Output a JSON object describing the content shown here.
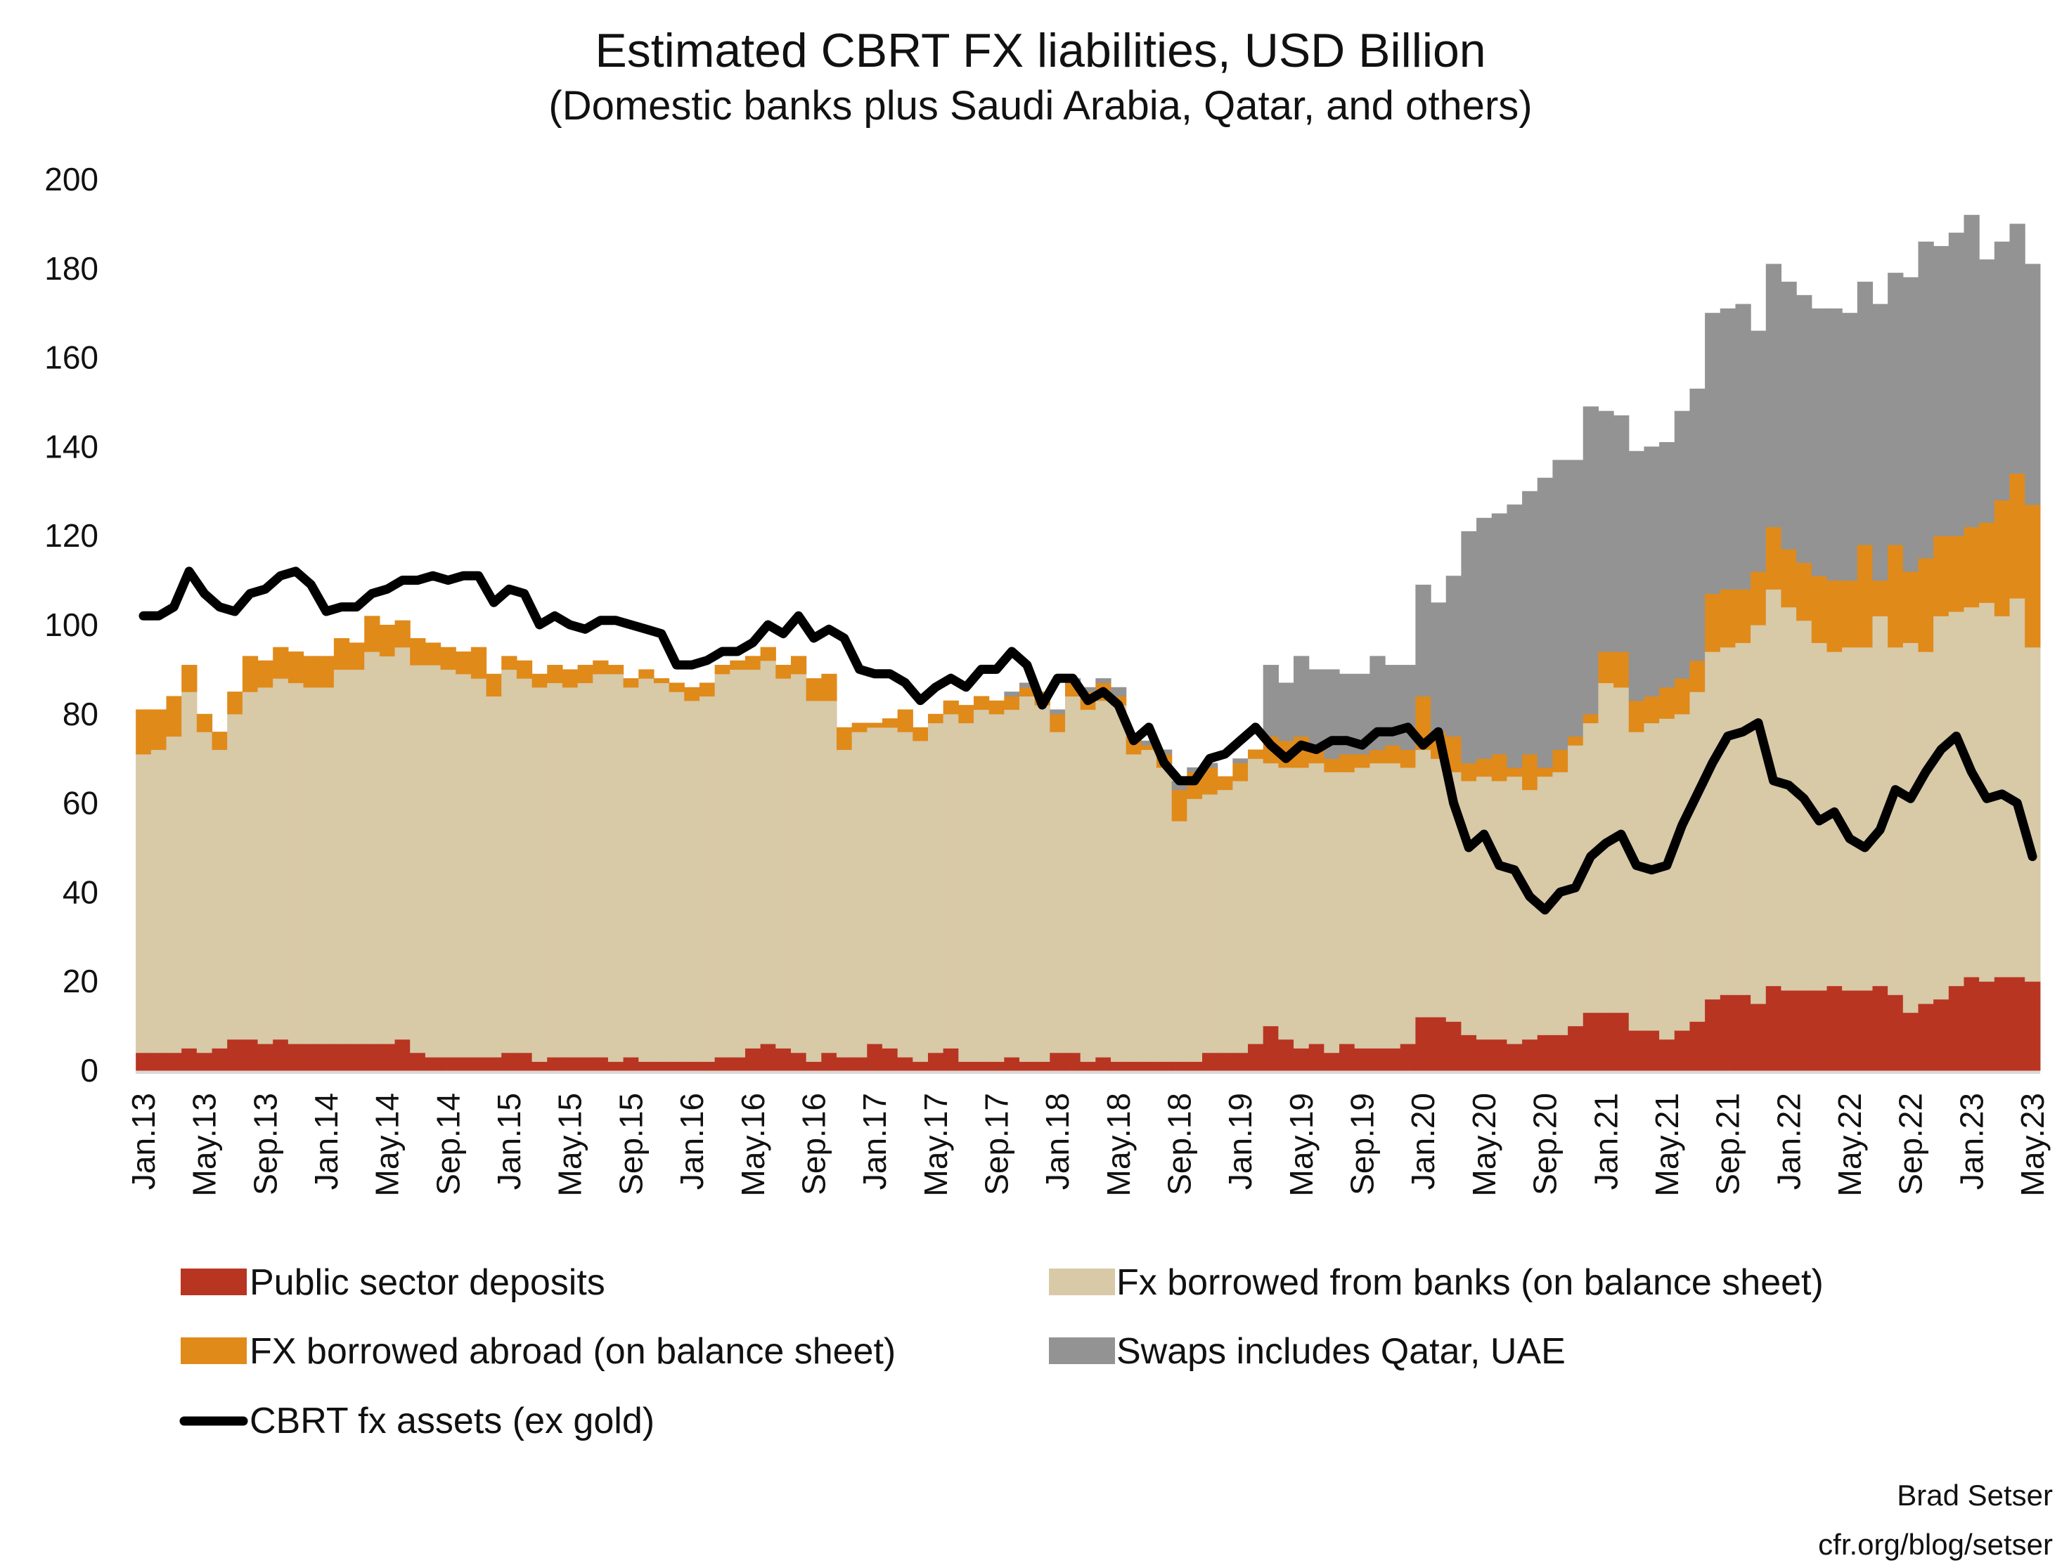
{
  "chart_data": {
    "type": "bar",
    "stacked": true,
    "title": "Estimated CBRT FX liabilities, USD Billion",
    "subtitle": "(Domestic banks plus Saudi Arabia, Qatar, and others)",
    "xlabel": "",
    "ylabel": "",
    "ylim": [
      0,
      200
    ],
    "y_ticks": [
      "0",
      "20",
      "40",
      "60",
      "80",
      "100",
      "120",
      "140",
      "160",
      "180",
      "200"
    ],
    "x_tick_labels": [
      "Jan.13",
      "May.13",
      "Sep.13",
      "Jan.14",
      "May.14",
      "Sep.14",
      "Jan.15",
      "May.15",
      "Sep.15",
      "Jan.16",
      "May.16",
      "Sep.16",
      "Jan.17",
      "May.17",
      "Sep.17",
      "Jan.18",
      "May.18",
      "Sep.18",
      "Jan.19",
      "May.19",
      "Sep.19",
      "Jan.20",
      "May.20",
      "Sep.20",
      "Jan.21",
      "May.21",
      "Sep.21",
      "Jan.22",
      "May.22",
      "Sep.22",
      "Jan.23",
      "May.23"
    ],
    "frequency": "monthly",
    "grid": false,
    "legend_position": "bottom",
    "series": [
      {
        "name": "Public sector deposits",
        "kind": "bar",
        "color": "#b83522",
        "values": [
          4,
          4,
          4,
          5,
          4,
          5,
          7,
          7,
          6,
          7,
          6,
          6,
          6,
          6,
          6,
          6,
          6,
          7,
          4,
          3,
          3,
          3,
          3,
          3,
          4,
          4,
          2,
          3,
          3,
          3,
          3,
          2,
          3,
          2,
          2,
          2,
          2,
          2,
          3,
          3,
          5,
          6,
          5,
          4,
          2,
          4,
          3,
          3,
          6,
          5,
          3,
          2,
          4,
          5,
          2,
          2,
          2,
          3,
          2,
          2,
          4,
          4,
          2,
          3,
          2,
          2,
          2,
          2,
          2,
          2,
          4,
          4,
          4,
          6,
          10,
          7,
          5,
          6,
          4,
          6,
          5,
          5,
          5,
          6,
          12,
          12,
          11,
          8,
          7,
          7,
          6,
          7,
          8,
          8,
          10,
          13,
          13,
          13,
          9,
          9,
          7,
          9,
          11,
          16,
          17,
          17,
          15,
          19,
          18,
          18,
          18,
          19,
          18,
          18,
          19,
          17,
          13,
          15,
          16,
          19,
          21,
          20,
          21,
          21,
          20
        ]
      },
      {
        "name": "Fx borrowed from banks (on balance sheet)",
        "kind": "bar",
        "color": "#d8c9a7",
        "values": [
          67,
          68,
          71,
          80,
          72,
          67,
          73,
          78,
          80,
          81,
          81,
          80,
          80,
          84,
          84,
          88,
          87,
          88,
          87,
          88,
          87,
          86,
          85,
          81,
          86,
          84,
          84,
          84,
          83,
          84,
          86,
          87,
          83,
          86,
          85,
          83,
          81,
          82,
          86,
          87,
          85,
          86,
          83,
          85,
          81,
          79,
          69,
          73,
          71,
          72,
          73,
          72,
          74,
          75,
          76,
          79,
          78,
          78,
          82,
          80,
          72,
          80,
          79,
          80,
          80,
          69,
          70,
          66,
          54,
          59,
          58,
          59,
          61,
          64,
          59,
          61,
          63,
          63,
          63,
          61,
          63,
          64,
          64,
          62,
          60,
          58,
          56,
          57,
          59,
          58,
          60,
          56,
          58,
          59,
          63,
          65,
          74,
          73,
          67,
          69,
          72,
          71,
          74,
          78,
          78,
          79,
          85,
          89,
          86,
          83,
          78,
          75,
          77,
          77,
          83,
          78,
          83,
          79,
          86,
          84,
          83,
          85,
          81,
          85,
          75
        ]
      },
      {
        "name": "FX borrowed abroad (on balance sheet)",
        "kind": "bar",
        "color": "#e08a1a",
        "values": [
          10,
          9,
          9,
          6,
          4,
          4,
          5,
          8,
          6,
          7,
          7,
          7,
          7,
          7,
          6,
          8,
          7,
          6,
          6,
          5,
          5,
          5,
          7,
          5,
          3,
          4,
          3,
          4,
          4,
          4,
          3,
          2,
          2,
          2,
          1,
          2,
          3,
          3,
          2,
          2,
          3,
          3,
          3,
          4,
          5,
          6,
          5,
          2,
          1,
          2,
          5,
          3,
          2,
          3,
          4,
          3,
          3,
          3,
          2,
          3,
          4,
          3,
          4,
          4,
          2,
          4,
          1,
          3,
          7,
          6,
          6,
          3,
          4,
          2,
          6,
          6,
          7,
          3,
          3,
          4,
          3,
          3,
          4,
          4,
          12,
          6,
          8,
          4,
          4,
          6,
          2,
          8,
          2,
          5,
          2,
          2,
          7,
          8,
          7,
          6,
          7,
          8,
          7,
          13,
          13,
          12,
          12,
          14,
          13,
          13,
          15,
          16,
          15,
          23,
          8,
          23,
          16,
          21,
          18,
          17,
          18,
          18,
          26,
          28,
          32
        ]
      },
      {
        "name": "Swaps includes Qatar, UAE",
        "kind": "bar",
        "color": "#939393",
        "values": [
          0,
          0,
          0,
          0,
          0,
          0,
          0,
          0,
          0,
          0,
          0,
          0,
          0,
          0,
          0,
          0,
          0,
          0,
          0,
          0,
          0,
          0,
          0,
          0,
          0,
          0,
          0,
          0,
          0,
          0,
          0,
          0,
          0,
          0,
          0,
          0,
          0,
          0,
          0,
          0,
          0,
          0,
          0,
          0,
          0,
          0,
          0,
          0,
          0,
          0,
          0,
          0,
          0,
          0,
          0,
          0,
          0,
          1,
          1,
          0,
          1,
          1,
          1,
          1,
          2,
          0,
          1,
          1,
          2,
          1,
          1,
          0,
          1,
          0,
          16,
          13,
          18,
          18,
          20,
          18,
          18,
          21,
          18,
          19,
          25,
          29,
          36,
          52,
          54,
          54,
          59,
          59,
          65,
          65,
          62,
          69,
          54,
          53,
          56,
          56,
          55,
          60,
          61,
          63,
          63,
          64,
          54,
          59,
          60,
          60,
          60,
          61,
          60,
          59,
          62,
          61,
          66,
          71,
          65,
          68,
          70,
          59,
          58,
          56,
          54
        ]
      },
      {
        "name": "CBRT fx assets (ex gold)",
        "kind": "line",
        "color": "#000000",
        "values": [
          102,
          102,
          104,
          112,
          107,
          104,
          103,
          107,
          108,
          111,
          112,
          109,
          103,
          104,
          104,
          107,
          108,
          110,
          110,
          111,
          110,
          111,
          111,
          105,
          108,
          107,
          100,
          102,
          100,
          99,
          101,
          101,
          100,
          99,
          98,
          91,
          91,
          92,
          94,
          94,
          96,
          100,
          98,
          102,
          97,
          99,
          97,
          90,
          89,
          89,
          87,
          83,
          86,
          88,
          86,
          90,
          90,
          94,
          91,
          82,
          88,
          88,
          83,
          85,
          82,
          74,
          77,
          69,
          65,
          65,
          70,
          71,
          74,
          77,
          73,
          70,
          73,
          72,
          74,
          74,
          73,
          76,
          76,
          77,
          73,
          76,
          60,
          50,
          53,
          46,
          45,
          39,
          36,
          40,
          41,
          48,
          51,
          53,
          46,
          45,
          46,
          55,
          62,
          69,
          75,
          76,
          78,
          65,
          64,
          61,
          56,
          58,
          52,
          50,
          54,
          63,
          61,
          67,
          72,
          75,
          67,
          61,
          62,
          60,
          48
        ]
      }
    ]
  },
  "legend": {
    "items": [
      {
        "label": "Public sector deposits",
        "color": "#b83522",
        "kind": "box"
      },
      {
        "label": "Fx borrowed from banks (on balance sheet)",
        "color": "#d8c9a7",
        "kind": "box"
      },
      {
        "label": "FX borrowed abroad (on balance sheet)",
        "color": "#e08a1a",
        "kind": "box"
      },
      {
        "label": "Swaps includes Qatar, UAE",
        "color": "#939393",
        "kind": "box"
      },
      {
        "label": "CBRT fx assets (ex gold)",
        "color": "#000000",
        "kind": "line"
      }
    ]
  },
  "footer": {
    "author": "Brad Setser",
    "source": "cfr.org/blog/setser"
  }
}
